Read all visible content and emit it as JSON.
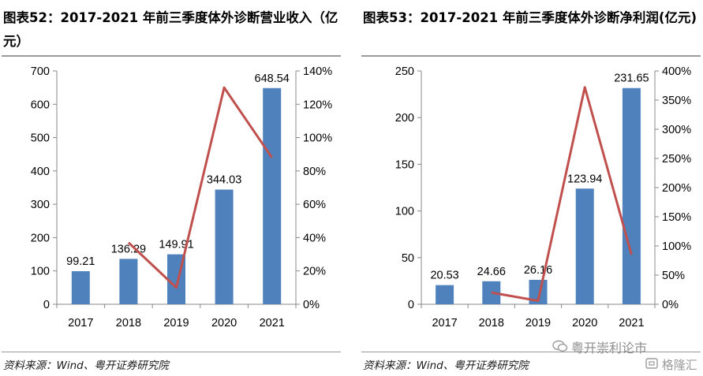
{
  "left": {
    "title": "图表52：2017-2021 年前三季度体外诊断营业收入（亿元）",
    "source": "资料来源：Wind、粤开证券研究院"
  },
  "right": {
    "title": "图表53：2017-2021 年前三季度体外诊断净利润(亿元)",
    "source": "资料来源：Wind、粤开证券研究院"
  },
  "watermark": {
    "text": "粤开崇利论市",
    "icon": "wechat-icon"
  },
  "watermark2": {
    "text": "格隆汇",
    "icon": "gelonghui-logo-icon"
  },
  "colors": {
    "bar": "#4F81BD",
    "line": "#C0504D",
    "axis": "#888888"
  },
  "chart_data": [
    {
      "type": "bar+line",
      "categories": [
        "2017",
        "2018",
        "2019",
        "2020",
        "2021"
      ],
      "bar_values": [
        99.21,
        136.29,
        149.91,
        344.03,
        648.54
      ],
      "bar_labels": [
        "99.21",
        "136.29",
        "149.91",
        "344.03",
        "648.54"
      ],
      "line_values": [
        null,
        37,
        10,
        130,
        88
      ],
      "ylim_left": [
        0,
        700
      ],
      "yticks_left": [
        "0",
        "100",
        "200",
        "300",
        "400",
        "500",
        "600",
        "700"
      ],
      "ylim_right": [
        0,
        140
      ],
      "yticks_right": [
        "0%",
        "20%",
        "40%",
        "60%",
        "80%",
        "100%",
        "120%",
        "140%"
      ],
      "grid": false,
      "legend": "none"
    },
    {
      "type": "bar+line",
      "categories": [
        "2017",
        "2018",
        "2019",
        "2020",
        "2021"
      ],
      "bar_values": [
        20.53,
        24.66,
        26.16,
        123.94,
        231.65
      ],
      "bar_labels": [
        "20.53",
        "24.66",
        "26.16",
        "123.94",
        "231.65"
      ],
      "line_values": [
        null,
        20,
        6,
        372,
        85
      ],
      "ylim_left": [
        0,
        250
      ],
      "yticks_left": [
        "0",
        "50",
        "100",
        "150",
        "200",
        "250"
      ],
      "ylim_right": [
        0,
        400
      ],
      "yticks_right": [
        "0%",
        "50%",
        "100%",
        "150%",
        "200%",
        "250%",
        "300%",
        "350%",
        "400%"
      ],
      "grid": false,
      "legend": "none"
    }
  ]
}
